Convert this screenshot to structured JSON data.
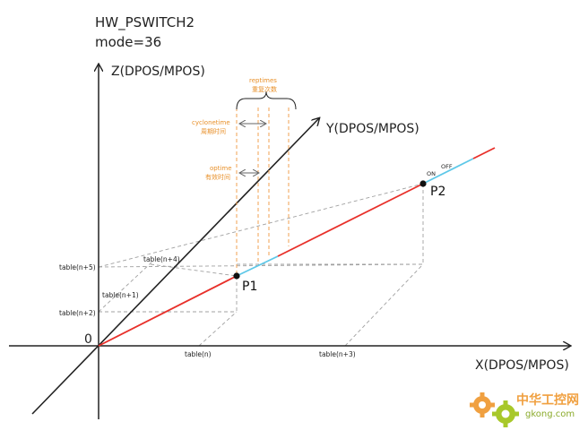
{
  "header": {
    "line1": "HW_PSWITCH2",
    "line2": "mode=36"
  },
  "axes": {
    "z_label": "Z(DPOS/MPOS)",
    "y_label": "Y(DPOS/MPOS)",
    "x_label": "X(DPOS/MPOS)",
    "origin": "0"
  },
  "table_labels": {
    "n": "table(n)",
    "n1": "table(n+1)",
    "n2": "table(n+2)",
    "n3": "table(n+3)",
    "n4": "table(n+4)",
    "n5": "table(n+5)"
  },
  "points": {
    "p1": "P1",
    "p2": "P2"
  },
  "markers": {
    "on": "ON",
    "off": "OFF"
  },
  "annotations": {
    "reptimes_en": "reptimes",
    "reptimes_cn": "重复次数",
    "cyclonetime_en": "cyclonetime",
    "cyclonetime_cn": "周期时间",
    "optime_en": "optime",
    "optime_cn": "有效时间"
  },
  "watermark": {
    "cn": "中华工控网",
    "url": "gkong.com"
  },
  "colors": {
    "axis": "#222222",
    "red_segment": "#e8302a",
    "cyan_segment": "#5ec8e8",
    "orange_annotation": "#f0a050",
    "dashed": "#999999"
  }
}
